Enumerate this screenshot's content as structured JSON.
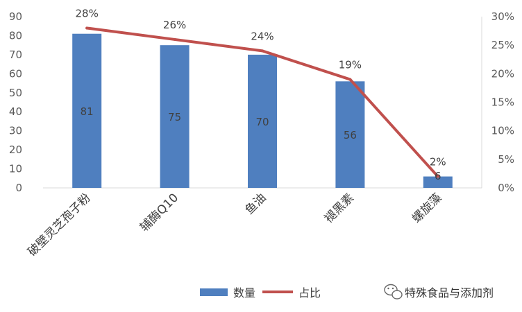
{
  "chart_data": {
    "type": "bar",
    "categories": [
      "破壁灵芝孢子粉",
      "辅酶Q10",
      "鱼油",
      "褪黑素",
      "螺旋藻"
    ],
    "series": [
      {
        "name": "数量",
        "type": "bar",
        "axis": "left",
        "values": [
          81,
          75,
          70,
          56,
          6
        ],
        "labels": [
          "81",
          "75",
          "70",
          "56",
          "6"
        ],
        "color": "#4F7FBF"
      },
      {
        "name": "占比",
        "type": "line",
        "axis": "right",
        "values": [
          28,
          26,
          24,
          19,
          2
        ],
        "labels": [
          "28%",
          "26%",
          "24%",
          "19%",
          "2%"
        ],
        "color": "#C0504D"
      }
    ],
    "y_left": {
      "min": 0,
      "max": 90,
      "step": 10,
      "ticks": [
        "0",
        "10",
        "20",
        "30",
        "40",
        "50",
        "60",
        "70",
        "80",
        "90"
      ]
    },
    "y_right": {
      "min": 0,
      "max": 30,
      "step": 5,
      "ticks": [
        "0%",
        "5%",
        "10%",
        "15%",
        "20%",
        "25%",
        "30%"
      ]
    },
    "grid": false,
    "legend_position": "bottom"
  },
  "watermark": {
    "text": "特殊食品与添加剂",
    "icon": "wechat-icon"
  }
}
